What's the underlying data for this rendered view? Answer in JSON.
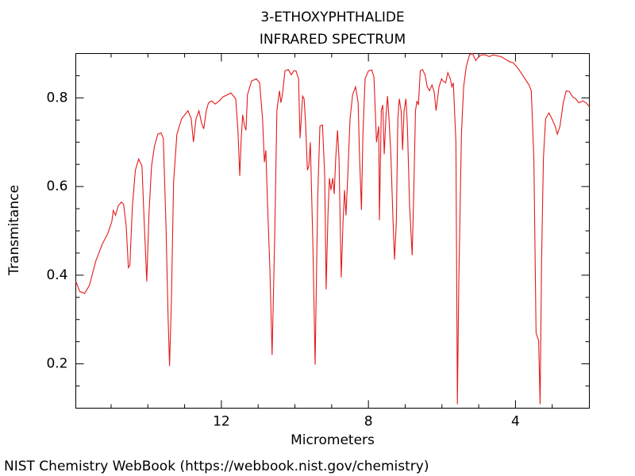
{
  "chart_data": {
    "type": "line",
    "title": "3-ETHOXYPHTHALIDE",
    "subtitle": "INFRARED SPECTRUM",
    "xlabel": "Micrometers",
    "ylabel": "Transmitance",
    "color": "#e41a1c",
    "xlim": [
      15.96,
      1.99
    ],
    "ylim": [
      0.1,
      0.9
    ],
    "xticks": [
      12,
      8,
      4
    ],
    "yticks": [
      0.2,
      0.4,
      0.6,
      0.8
    ],
    "xminor": [
      15,
      14,
      13,
      11,
      10,
      9,
      7,
      6,
      5,
      3
    ],
    "yminor": [
      0.15,
      0.25,
      0.3,
      0.35,
      0.45,
      0.5,
      0.55,
      0.65,
      0.7,
      0.75,
      0.85
    ],
    "x": [
      15.96,
      15.85,
      15.72,
      15.59,
      15.42,
      15.24,
      15.09,
      14.98,
      14.94,
      14.88,
      14.81,
      14.72,
      14.66,
      14.59,
      14.53,
      14.49,
      14.42,
      14.34,
      14.25,
      14.16,
      14.1,
      14.03,
      13.97,
      13.9,
      13.82,
      13.73,
      13.64,
      13.58,
      13.51,
      13.45,
      13.41,
      13.36,
      13.3,
      13.21,
      13.08,
      12.91,
      12.82,
      12.76,
      12.69,
      12.61,
      12.54,
      12.48,
      12.41,
      12.35,
      12.26,
      12.17,
      12.06,
      11.96,
      11.74,
      11.61,
      11.55,
      11.5,
      11.46,
      11.42,
      11.37,
      11.33,
      11.29,
      11.18,
      11.05,
      10.96,
      10.88,
      10.83,
      10.79,
      10.75,
      10.68,
      10.62,
      10.55,
      10.49,
      10.42,
      10.38,
      10.34,
      10.27,
      10.18,
      10.1,
      10.03,
      9.97,
      9.9,
      9.86,
      9.79,
      9.75,
      9.71,
      9.66,
      9.62,
      9.58,
      9.51,
      9.45,
      9.38,
      9.32,
      9.25,
      9.19,
      9.15,
      9.1,
      9.06,
      9.02,
      8.97,
      8.93,
      8.89,
      8.84,
      8.8,
      8.74,
      8.69,
      8.65,
      8.61,
      8.56,
      8.5,
      8.43,
      8.35,
      8.28,
      8.24,
      8.19,
      8.15,
      8.09,
      8.0,
      7.91,
      7.85,
      7.78,
      7.72,
      7.7,
      7.65,
      7.61,
      7.57,
      7.52,
      7.48,
      7.44,
      7.39,
      7.33,
      7.29,
      7.24,
      7.2,
      7.16,
      7.11,
      7.07,
      7.03,
      6.98,
      6.94,
      6.88,
      6.81,
      6.77,
      6.72,
      6.68,
      6.64,
      6.59,
      6.53,
      6.46,
      6.4,
      6.34,
      6.27,
      6.21,
      6.16,
      6.12,
      6.08,
      6.01,
      5.97,
      5.9,
      5.84,
      5.77,
      5.73,
      5.69,
      5.62,
      5.58,
      5.54,
      5.47,
      5.41,
      5.34,
      5.25,
      5.17,
      5.08,
      5.02,
      4.93,
      4.82,
      4.71,
      4.61,
      4.39,
      4.17,
      4.06,
      3.96,
      3.85,
      3.74,
      3.63,
      3.57,
      3.5,
      3.44,
      3.37,
      3.33,
      3.29,
      3.24,
      3.18,
      3.09,
      3.01,
      2.92,
      2.86,
      2.79,
      2.7,
      2.62,
      2.53,
      2.44,
      2.36,
      2.28,
      2.17,
      2.08,
      1.99
    ],
    "values": [
      0.386,
      0.363,
      0.359,
      0.377,
      0.431,
      0.47,
      0.494,
      0.521,
      0.546,
      0.535,
      0.556,
      0.565,
      0.56,
      0.512,
      0.417,
      0.422,
      0.556,
      0.637,
      0.662,
      0.646,
      0.521,
      0.386,
      0.538,
      0.646,
      0.691,
      0.718,
      0.721,
      0.709,
      0.521,
      0.306,
      0.195,
      0.341,
      0.61,
      0.718,
      0.753,
      0.771,
      0.753,
      0.7,
      0.753,
      0.771,
      0.744,
      0.73,
      0.771,
      0.789,
      0.793,
      0.786,
      0.793,
      0.802,
      0.811,
      0.798,
      0.727,
      0.624,
      0.709,
      0.762,
      0.736,
      0.727,
      0.807,
      0.838,
      0.843,
      0.834,
      0.753,
      0.655,
      0.682,
      0.574,
      0.413,
      0.22,
      0.485,
      0.771,
      0.816,
      0.789,
      0.807,
      0.861,
      0.864,
      0.852,
      0.861,
      0.861,
      0.843,
      0.709,
      0.804,
      0.798,
      0.744,
      0.637,
      0.646,
      0.7,
      0.467,
      0.198,
      0.574,
      0.736,
      0.739,
      0.628,
      0.368,
      0.538,
      0.619,
      0.592,
      0.619,
      0.583,
      0.664,
      0.727,
      0.664,
      0.395,
      0.521,
      0.592,
      0.535,
      0.628,
      0.753,
      0.807,
      0.825,
      0.789,
      0.664,
      0.547,
      0.718,
      0.843,
      0.861,
      0.863,
      0.847,
      0.7,
      0.736,
      0.524,
      0.771,
      0.784,
      0.673,
      0.762,
      0.804,
      0.753,
      0.673,
      0.521,
      0.435,
      0.521,
      0.753,
      0.798,
      0.771,
      0.682,
      0.771,
      0.798,
      0.736,
      0.556,
      0.445,
      0.574,
      0.771,
      0.793,
      0.784,
      0.861,
      0.864,
      0.852,
      0.825,
      0.816,
      0.829,
      0.813,
      0.771,
      0.798,
      0.825,
      0.843,
      0.838,
      0.834,
      0.857,
      0.843,
      0.825,
      0.834,
      0.7,
      0.109,
      0.395,
      0.718,
      0.825,
      0.87,
      0.897,
      0.9,
      0.884,
      0.891,
      0.897,
      0.897,
      0.893,
      0.897,
      0.893,
      0.882,
      0.879,
      0.87,
      0.857,
      0.843,
      0.829,
      0.816,
      0.664,
      0.27,
      0.252,
      0.109,
      0.431,
      0.664,
      0.753,
      0.766,
      0.753,
      0.736,
      0.718,
      0.736,
      0.789,
      0.816,
      0.814,
      0.802,
      0.798,
      0.789,
      0.793,
      0.789,
      0.78
    ]
  },
  "footer": "NIST Chemistry WebBook (https://webbook.nist.gov/chemistry)"
}
